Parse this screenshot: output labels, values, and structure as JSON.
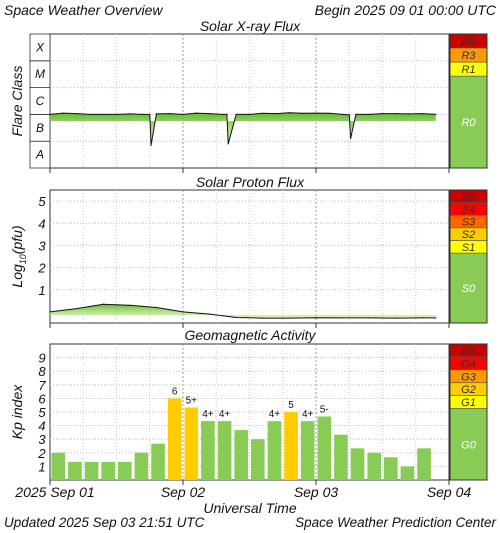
{
  "header": {
    "title": "Space Weather Overview",
    "begin": "Begin 2025 09 01 00:00 UTC"
  },
  "footer": {
    "updated": "Updated 2025 Sep 03 21:51 UTC",
    "source": "Space Weather Prediction Center"
  },
  "x_axis": {
    "label": "Universal Time",
    "ticks": [
      "2025 Sep 01",
      "Sep 02",
      "Sep 03",
      "Sep 04"
    ]
  },
  "colors": {
    "green": "#88cc55",
    "yellow": "#ffff00",
    "gold": "#ffcc00",
    "orange": "#ff9900",
    "red_orange": "#ff6600",
    "red": "#ff0000",
    "dark_red": "#cc0000",
    "bar_green": "#88cc55",
    "bar_gold": "#ffcc00"
  },
  "chart_data": [
    {
      "type": "line",
      "title": "Solar X-ray Flux",
      "ylabel": "Flare Class",
      "y_ticks": [
        "A",
        "B",
        "C",
        "M",
        "X"
      ],
      "ylim": [
        -8,
        -3
      ],
      "y_scale": "log",
      "x_range_days": [
        0,
        3
      ],
      "x": [
        0.0,
        0.1,
        0.2,
        0.3,
        0.4,
        0.5,
        0.6,
        0.7,
        0.75,
        0.76,
        0.8,
        0.9,
        1.0,
        1.1,
        1.2,
        1.3,
        1.33,
        1.34,
        1.4,
        1.5,
        1.6,
        1.7,
        1.8,
        1.9,
        2.0,
        2.1,
        2.2,
        2.25,
        2.26,
        2.3,
        2.4,
        2.5,
        2.6,
        2.7,
        2.8,
        2.9
      ],
      "values": [
        -6.0,
        -5.95,
        -5.97,
        -6.0,
        -6.0,
        -6.0,
        -5.98,
        -6.0,
        -6.0,
        -7.15,
        -5.98,
        -5.97,
        -6.0,
        -5.95,
        -5.97,
        -6.0,
        -6.0,
        -7.1,
        -6.0,
        -6.0,
        -5.96,
        -5.97,
        -5.94,
        -5.96,
        -5.95,
        -5.96,
        -6.0,
        -6.02,
        -6.9,
        -6.0,
        -6.0,
        -5.97,
        -5.97,
        -5.98,
        -5.97,
        -6.0
      ],
      "legend_scale": [
        {
          "label": "R5",
          "color": "#cc0000"
        },
        {
          "label": "R3",
          "color": "#ff9900"
        },
        {
          "label": "R1",
          "color": "#ffff00"
        },
        {
          "label": "R0",
          "color": "#88cc55"
        }
      ]
    },
    {
      "type": "line",
      "title": "Solar Proton Flux",
      "ylabel": "Log10(pfu)",
      "y_ticks": [
        "1",
        "2",
        "3",
        "4",
        "5"
      ],
      "ylim": [
        -0.5,
        5.5
      ],
      "x_range_days": [
        0,
        3
      ],
      "x": [
        0.0,
        0.2,
        0.4,
        0.6,
        0.8,
        1.0,
        1.2,
        1.4,
        1.6,
        1.8,
        2.0,
        2.2,
        2.4,
        2.6,
        2.8,
        2.9
      ],
      "values": [
        0.0,
        0.15,
        0.35,
        0.3,
        0.2,
        0.0,
        -0.1,
        -0.25,
        -0.28,
        -0.28,
        -0.26,
        -0.27,
        -0.27,
        -0.28,
        -0.27,
        -0.27
      ],
      "legend_scale": [
        {
          "label": "S5",
          "color": "#cc0000"
        },
        {
          "label": "S4",
          "color": "#ff0000"
        },
        {
          "label": "S3",
          "color": "#ff6600"
        },
        {
          "label": "S2",
          "color": "#ffcc00"
        },
        {
          "label": "S1",
          "color": "#ffff00"
        },
        {
          "label": "S0",
          "color": "#88cc55"
        }
      ]
    },
    {
      "type": "bar",
      "title": "Geomagnetic Activity",
      "ylabel": "Kp index",
      "y_ticks": [
        "1",
        "2",
        "3",
        "4",
        "5",
        "6",
        "7",
        "8",
        "9"
      ],
      "ylim": [
        0,
        10
      ],
      "values": [
        2.0,
        1.33,
        1.33,
        1.33,
        1.33,
        2.0,
        2.67,
        6.0,
        5.33,
        4.33,
        4.33,
        3.67,
        3.0,
        4.33,
        5.0,
        4.33,
        4.67,
        3.33,
        2.33,
        2.0,
        1.67,
        1.0,
        2.33
      ],
      "labels": [
        "",
        "",
        "",
        "",
        "",
        "",
        "",
        "6",
        "5+",
        "4+",
        "4+",
        "",
        "",
        "4+",
        "5",
        "4+",
        "5-",
        "",
        "",
        "",
        "",
        "",
        ""
      ],
      "legend_scale": [
        {
          "label": "G5",
          "color": "#cc0000"
        },
        {
          "label": "G4",
          "color": "#ff0000"
        },
        {
          "label": "G3",
          "color": "#ff9900"
        },
        {
          "label": "G2",
          "color": "#ffcc00"
        },
        {
          "label": "G1",
          "color": "#ffff00"
        },
        {
          "label": "G0",
          "color": "#88cc55"
        }
      ]
    }
  ]
}
